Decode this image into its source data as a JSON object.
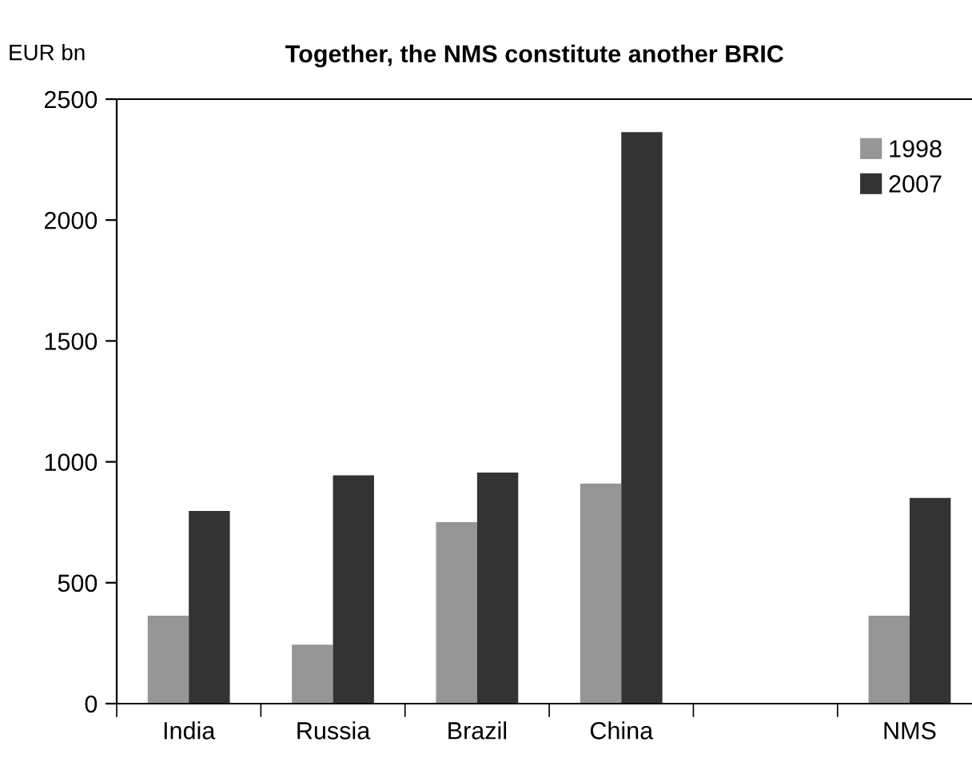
{
  "chart_data": {
    "type": "bar",
    "title": "Together, the NMS constitute another BRIC",
    "ylabel": "EUR bn",
    "categories": [
      "India",
      "Russia",
      "Brazil",
      "China",
      null,
      "NMS"
    ],
    "series": [
      {
        "name": "1998",
        "color": "#969696",
        "values": [
          364,
          244,
          751,
          910,
          null,
          364
        ]
      },
      {
        "name": "2007",
        "color": "#333333",
        "values": [
          797,
          944,
          956,
          2364,
          null,
          851
        ]
      }
    ],
    "ylim": [
      0,
      2500
    ],
    "yticks": [
      0,
      500,
      1000,
      1500,
      2000,
      2500
    ],
    "grid": false,
    "legend": "top right"
  }
}
